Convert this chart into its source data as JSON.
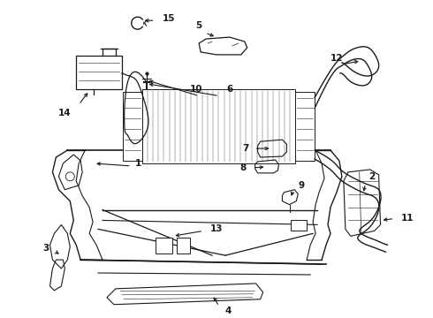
{
  "bg_color": "#ffffff",
  "line_color": "#1a1a1a",
  "fig_width": 4.9,
  "fig_height": 3.6,
  "dpi": 100,
  "labels": {
    "1": [
      148,
      198,
      160,
      185
    ],
    "2": [
      393,
      218,
      405,
      210
    ],
    "3": [
      68,
      270,
      58,
      278
    ],
    "4": [
      248,
      330,
      255,
      342
    ],
    "5": [
      215,
      46,
      225,
      38
    ],
    "6": [
      248,
      132,
      255,
      125
    ],
    "7": [
      295,
      166,
      285,
      167
    ],
    "8": [
      295,
      185,
      285,
      186
    ],
    "9": [
      313,
      212,
      320,
      220
    ],
    "10": [
      242,
      128,
      252,
      120
    ],
    "11": [
      430,
      220,
      440,
      230
    ],
    "12": [
      360,
      68,
      368,
      60
    ],
    "13": [
      242,
      245,
      252,
      248
    ],
    "14": [
      78,
      188,
      68,
      198
    ],
    "15": [
      173,
      22,
      183,
      18
    ]
  }
}
